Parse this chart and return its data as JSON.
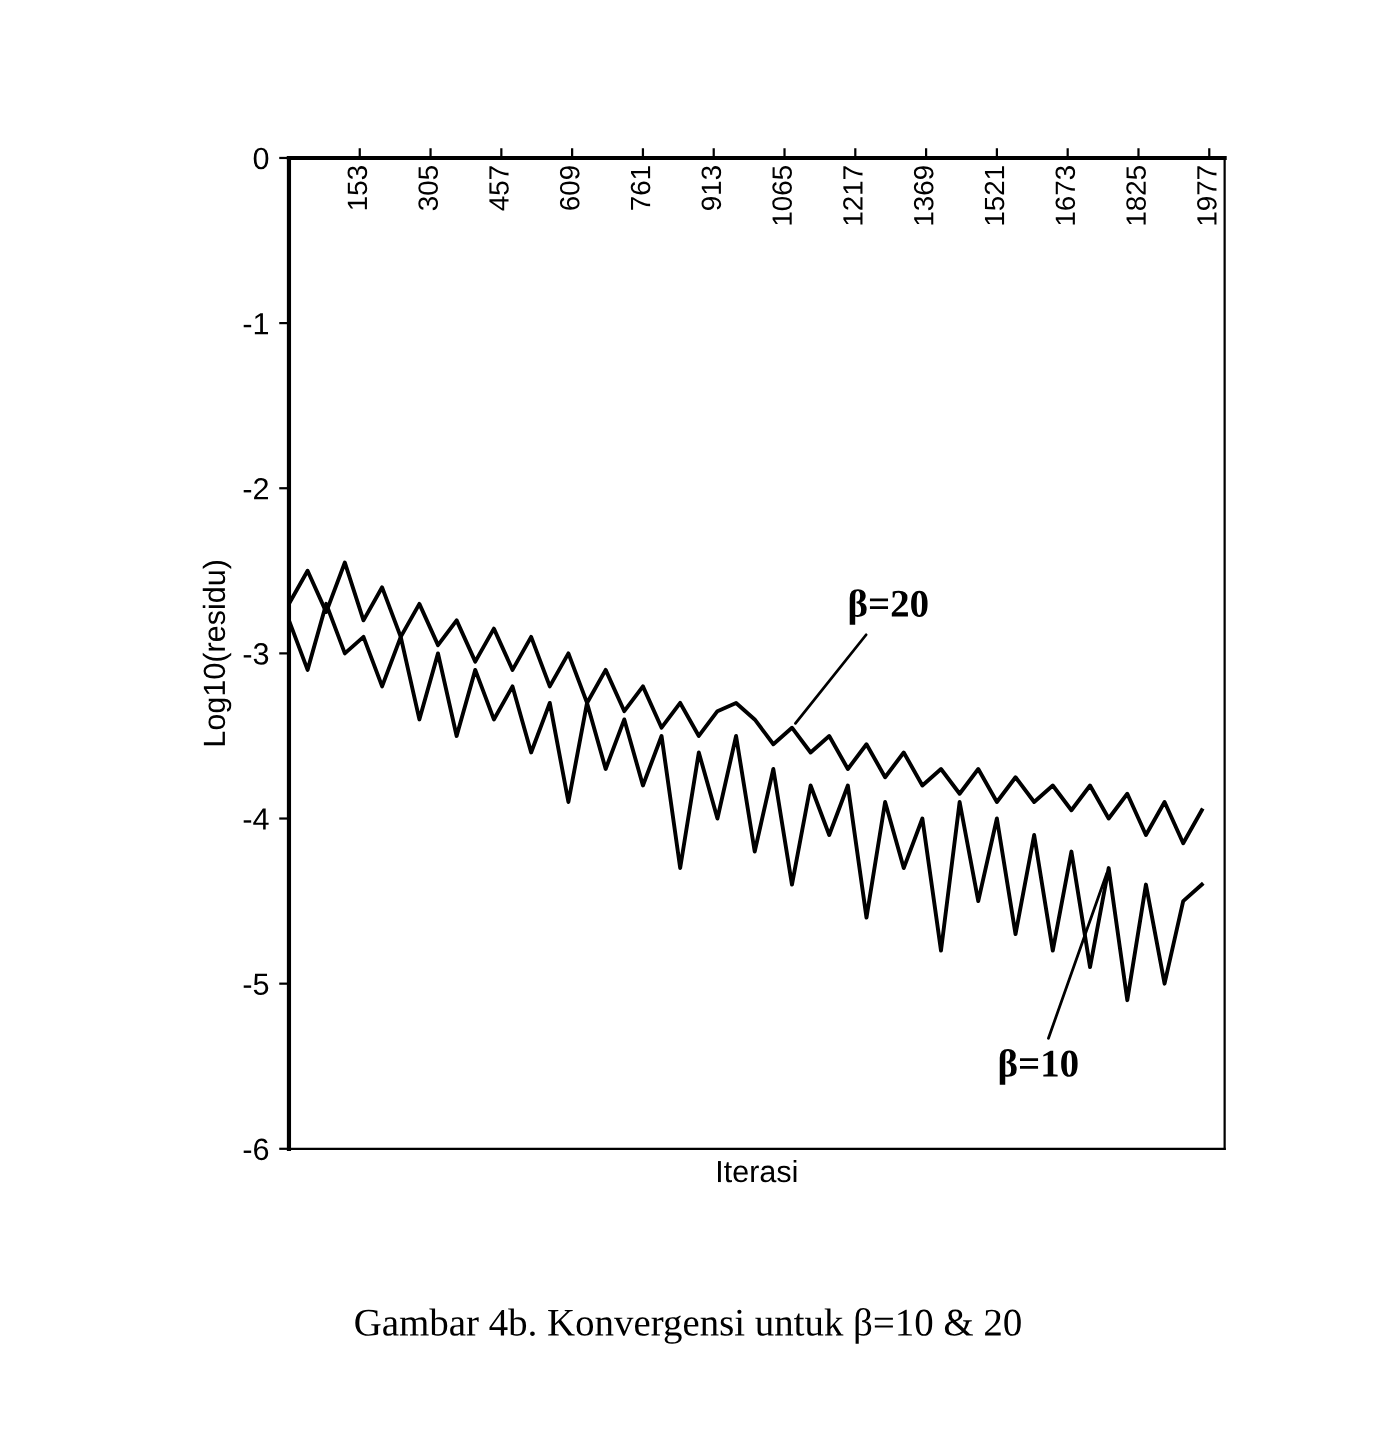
{
  "chart_data": {
    "type": "line",
    "xlabel": "Iterasi",
    "ylabel": "Log10(residu)",
    "x": [
      1,
      41,
      81,
      121,
      161,
      201,
      241,
      281,
      321,
      361,
      401,
      441,
      481,
      521,
      561,
      601,
      641,
      681,
      721,
      761,
      801,
      841,
      881,
      921,
      961,
      1001,
      1041,
      1081,
      1121,
      1161,
      1201,
      1241,
      1281,
      1321,
      1361,
      1401,
      1441,
      1481,
      1521,
      1561,
      1601,
      1641,
      1681,
      1721,
      1761,
      1801,
      1841,
      1881,
      1921,
      1961
    ],
    "series": [
      {
        "color": "#000000",
        "values": [
          -2.7,
          -2.5,
          -2.75,
          -2.45,
          -2.8,
          -2.6,
          -2.9,
          -2.7,
          -2.95,
          -2.8,
          -3.05,
          -2.85,
          -3.1,
          -2.9,
          -3.2,
          -3.0,
          -3.3,
          -3.1,
          -3.35,
          -3.2,
          -3.45,
          -3.3,
          -3.5,
          -3.35,
          -3.3,
          -3.4,
          -3.55,
          -3.45,
          -3.6,
          -3.5,
          -3.7,
          -3.55,
          -3.75,
          -3.6,
          -3.8,
          -3.7,
          -3.85,
          -3.7,
          -3.9,
          -3.75,
          -3.9,
          -3.8,
          -3.95,
          -3.8,
          -4.0,
          -3.85,
          -4.1,
          -3.9,
          -4.15,
          -3.95
        ]
      },
      {
        "color": "#000000",
        "values": [
          -2.8,
          -3.1,
          -2.7,
          -3.0,
          -2.9,
          -3.2,
          -2.9,
          -3.4,
          -3.0,
          -3.5,
          -3.1,
          -3.4,
          -3.2,
          -3.6,
          -3.3,
          -3.9,
          -3.3,
          -3.7,
          -3.4,
          -3.8,
          -3.5,
          -4.3,
          -3.6,
          -4.0,
          -3.5,
          -4.2,
          -3.7,
          -4.4,
          -3.8,
          -4.1,
          -3.8,
          -4.6,
          -3.9,
          -4.3,
          -4.0,
          -4.8,
          -3.9,
          -4.5,
          -4.0,
          -4.7,
          -4.1,
          -4.8,
          -4.2,
          -4.9,
          -4.3,
          -5.1,
          -4.4,
          -5.0,
          -4.5,
          -4.4
        ]
      }
    ],
    "xlim": [
      1,
      2010
    ],
    "xticks": [
      153,
      305,
      457,
      609,
      761,
      913,
      1065,
      1217,
      1369,
      1521,
      1673,
      1825,
      1977
    ],
    "ylim": [
      -6,
      0
    ],
    "yticks": [
      {
        "value": 0,
        "label": "0"
      },
      {
        "value": -1,
        "label": "-1"
      },
      {
        "value": -2,
        "label": "-2"
      },
      {
        "value": -3,
        "label": "-3"
      },
      {
        "value": -4,
        "label": "-4"
      },
      {
        "value": -5,
        "label": "-5"
      },
      {
        "value": -6,
        "label": "-6"
      }
    ],
    "grid": false,
    "marker": "none",
    "line_style": "solid",
    "annotations": [
      {
        "text": "β=20",
        "x": 1081,
        "y": -3.45
      },
      {
        "text": "β=10",
        "x": 1761,
        "y": -4.3
      },
      "Gambar 4b. Konvergensi untuk β=10 & 20"
    ]
  }
}
